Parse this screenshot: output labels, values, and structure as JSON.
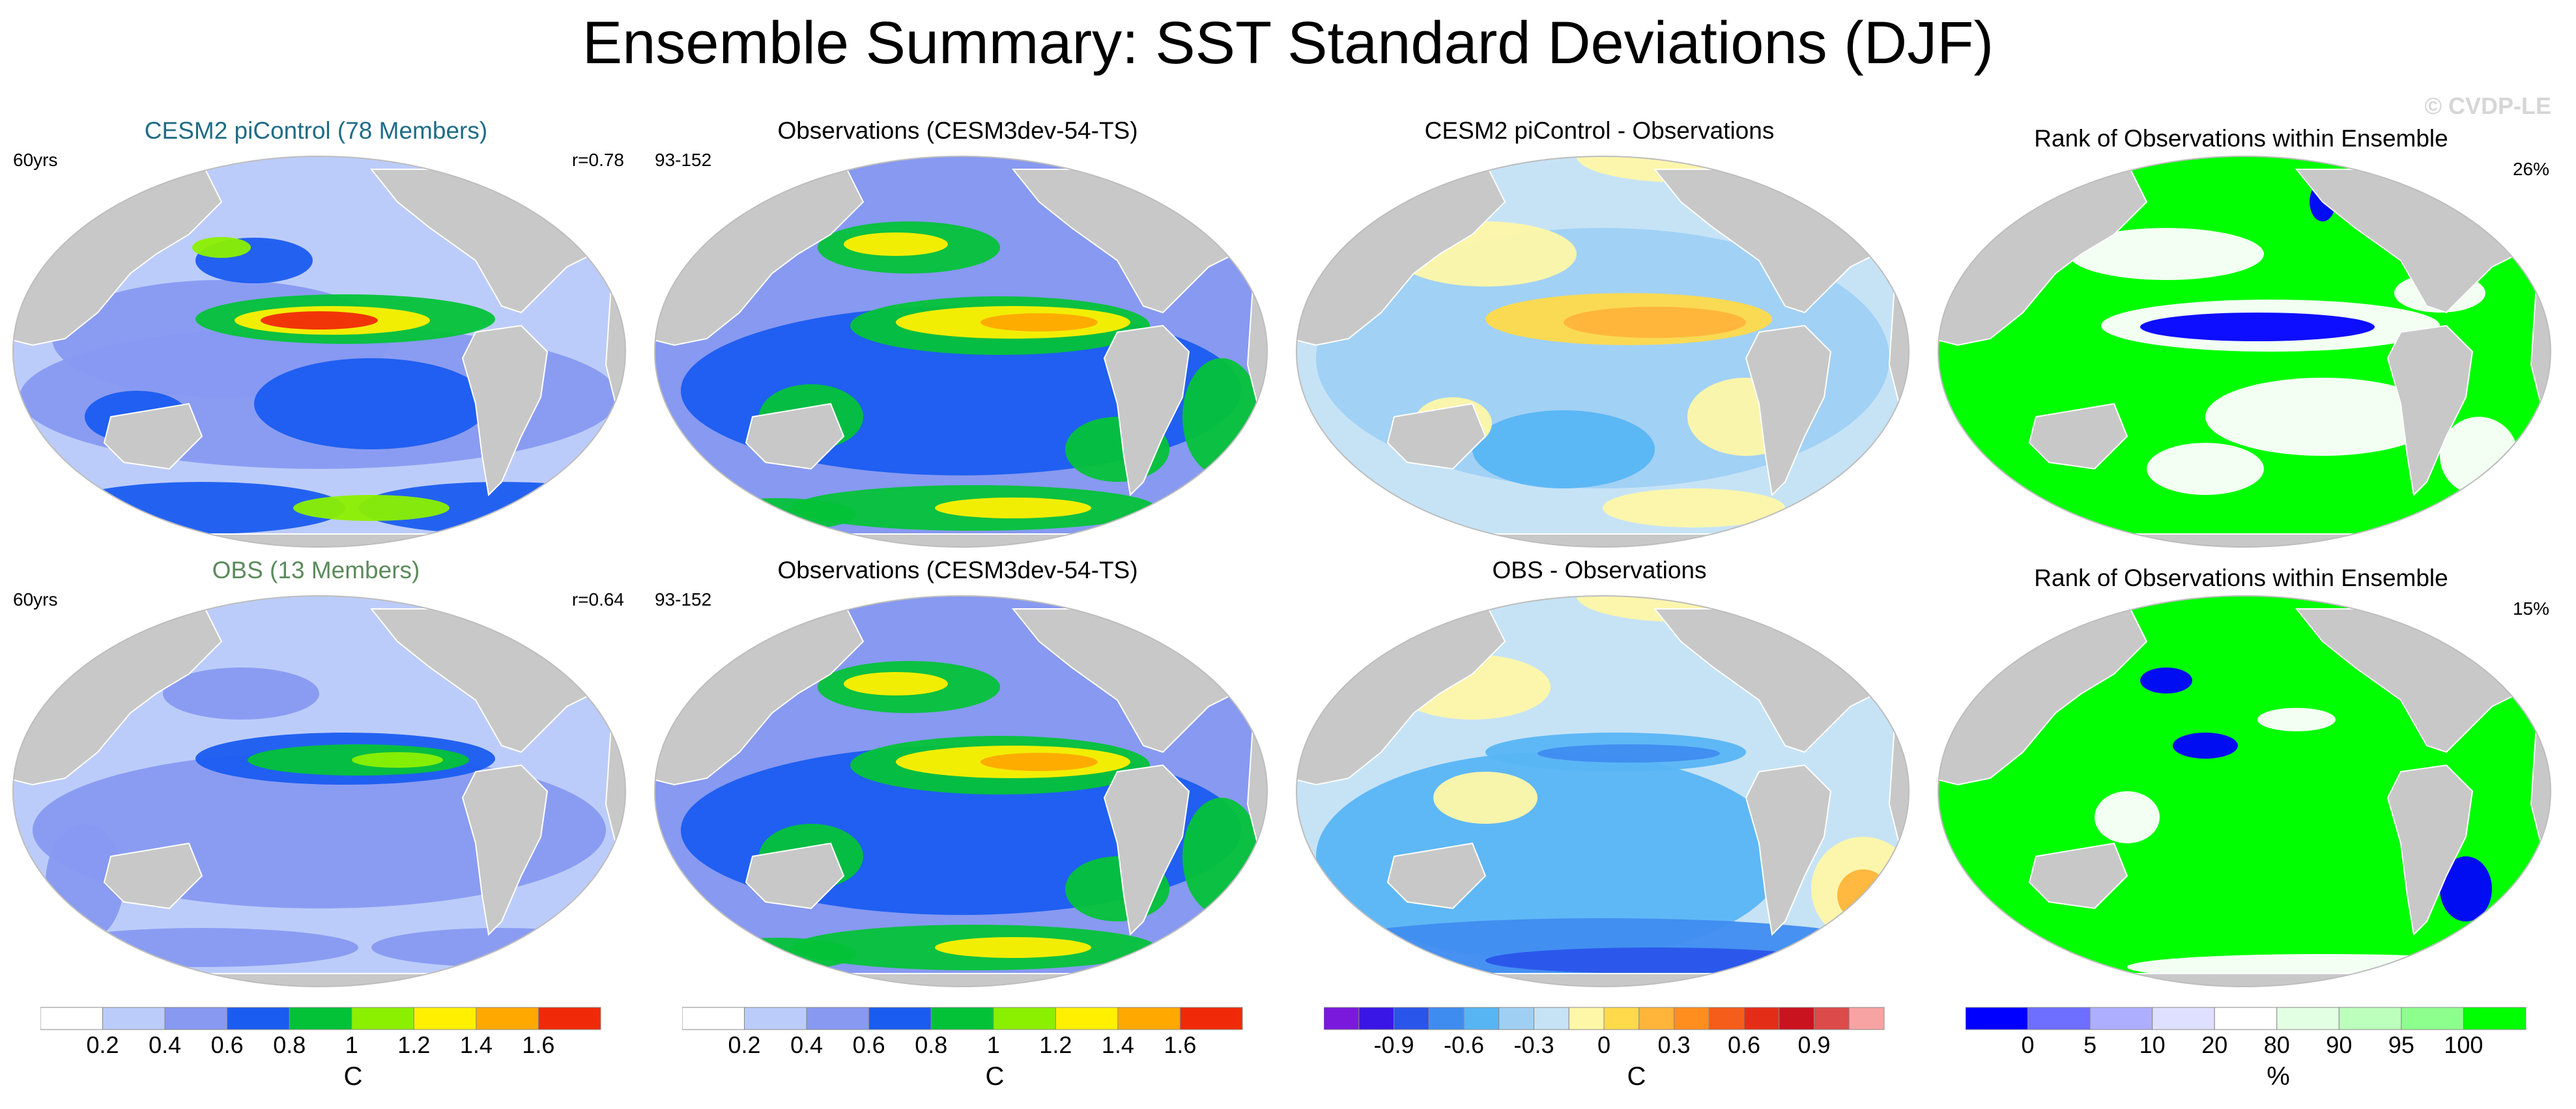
{
  "title": "Ensemble Summary: SST Standard Deviations (DJF)",
  "watermark": "© CVDP-LE",
  "colors": {
    "land": "#c8c8c8",
    "ocean_frame": "#bdbdbd",
    "palette_std": [
      "#ffffff",
      "#bcccfa",
      "#8799f1",
      "#1a5cf0",
      "#04c238",
      "#8bf000",
      "#fff000",
      "#ffa800",
      "#f02a08"
    ],
    "palette_diff": [
      "#7a19dc",
      "#3a16e6",
      "#2a55ea",
      "#3f8cf0",
      "#58b5f4",
      "#9fd0f4",
      "#c6e3f6",
      "#fff7a8",
      "#ffda4a",
      "#ffb43a",
      "#ff8e1e",
      "#f55d1a",
      "#e42d17",
      "#c9131e",
      "#dc4a4a",
      "#f7a3a3"
    ],
    "palette_rank": [
      "#0000ff",
      "#6e6eff",
      "#aeaeff",
      "#dfdfff",
      "#ffffff",
      "#e3ffe3",
      "#bcffbc",
      "#8dff8d",
      "#00ff00"
    ]
  },
  "panels": [
    {
      "title": "CESM2 piControl (78 Members)",
      "title_color": "#1f6c86",
      "left": "60yrs",
      "right": "r=0.78",
      "type": "std",
      "variant": "model"
    },
    {
      "title": "Observations (CESM3dev-54-TS)",
      "title_color": "#000000",
      "left": "93-152",
      "right": "",
      "type": "std",
      "variant": "obs"
    },
    {
      "title": "CESM2 piControl - Observations",
      "title_color": "#000000",
      "left": "",
      "right": "",
      "type": "diff",
      "variant": "a"
    },
    {
      "title": "Rank of Observations within Ensemble",
      "title_color": "#000000",
      "left": "",
      "right": "26%",
      "type": "rank",
      "variant": "a"
    },
    {
      "title": "OBS (13 Members)",
      "title_color": "#5c8a5c",
      "left": "60yrs",
      "right": "r=0.64",
      "type": "std",
      "variant": "obsens"
    },
    {
      "title": "Observations (CESM3dev-54-TS)",
      "title_color": "#000000",
      "left": "93-152",
      "right": "",
      "type": "std",
      "variant": "obs"
    },
    {
      "title": "OBS - Observations",
      "title_color": "#000000",
      "left": "",
      "right": "",
      "type": "diff",
      "variant": "b"
    },
    {
      "title": "Rank of Observations within Ensemble",
      "title_color": "#000000",
      "left": "",
      "right": "15%",
      "type": "rank",
      "variant": "b"
    }
  ],
  "colorbars": [
    {
      "type": "std",
      "ticks": [
        "0.2",
        "0.4",
        "0.6",
        "0.8",
        "1",
        "1.2",
        "1.4",
        "1.6"
      ],
      "label": "C"
    },
    {
      "type": "std",
      "ticks": [
        "0.2",
        "0.4",
        "0.6",
        "0.8",
        "1",
        "1.2",
        "1.4",
        "1.6"
      ],
      "label": "C"
    },
    {
      "type": "diff",
      "ticks": [
        "-0.9",
        "-0.6",
        "-0.3",
        "0",
        "0.3",
        "0.6",
        "0.9"
      ],
      "label": "C"
    },
    {
      "type": "rank",
      "ticks": [
        "0",
        "5",
        "10",
        "20",
        "80",
        "90",
        "95",
        "100"
      ],
      "label": "%"
    }
  ]
}
